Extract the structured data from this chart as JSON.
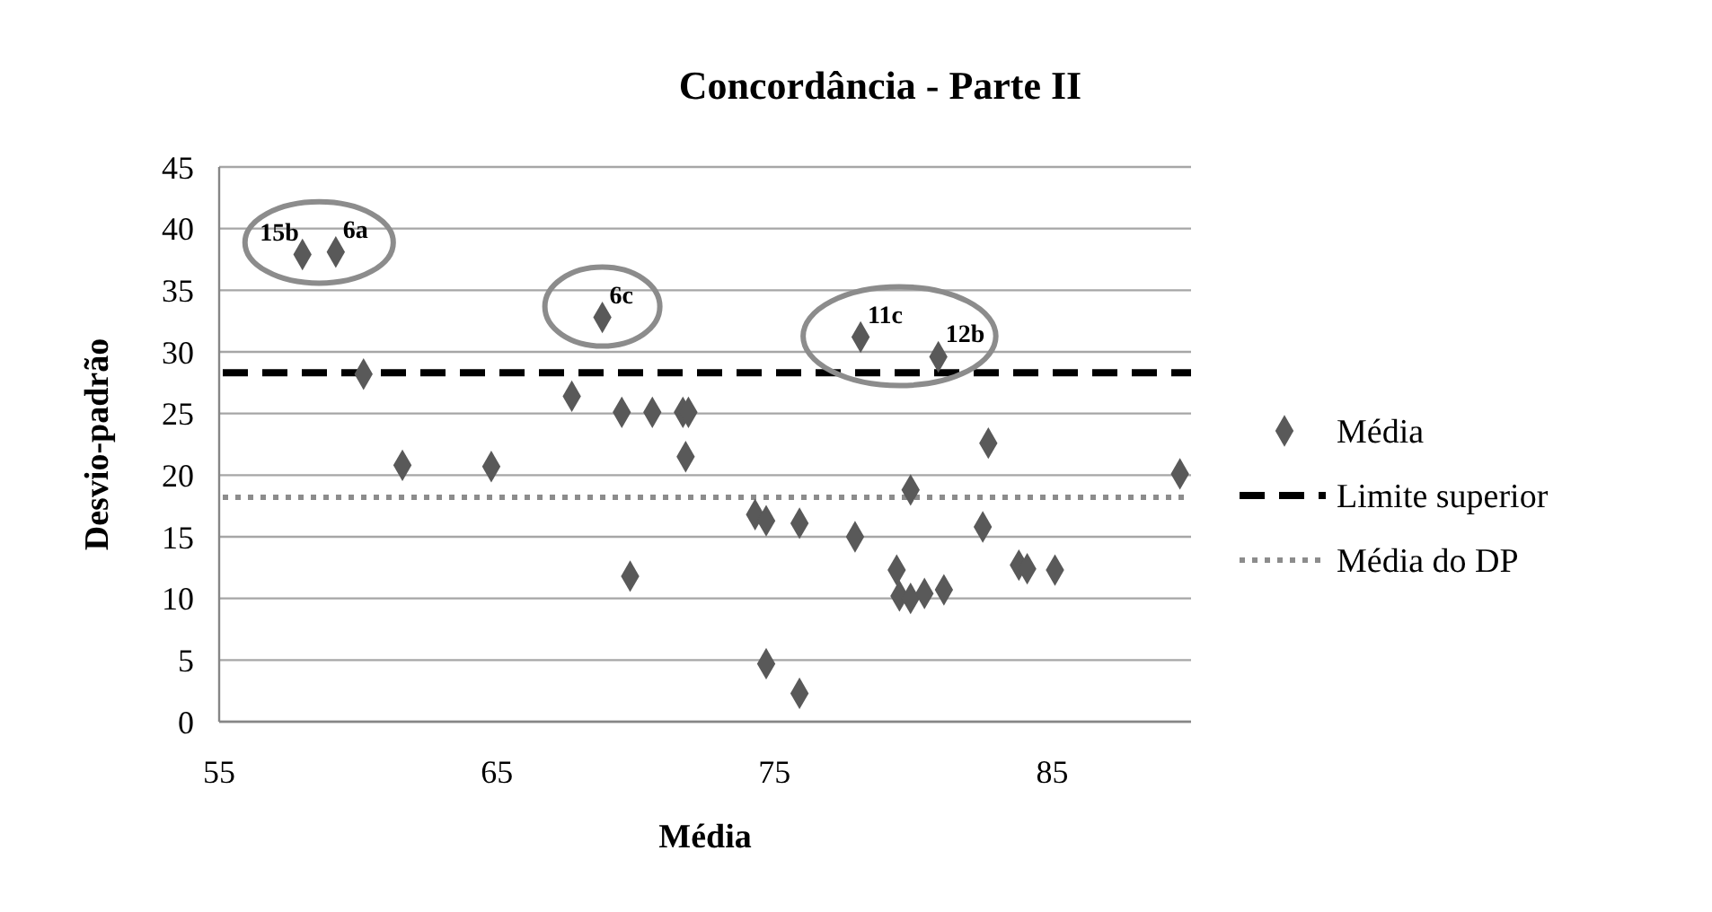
{
  "chart_data": {
    "type": "scatter",
    "title": "Concordância - Parte II",
    "xlabel": "Média",
    "ylabel": "Desvio-padrão",
    "xlim": [
      55,
      90
    ],
    "xticks": [
      55,
      65,
      75,
      85
    ],
    "ylim": [
      0,
      45
    ],
    "yticks": [
      0,
      5,
      10,
      15,
      20,
      25,
      30,
      35,
      40,
      45
    ],
    "grid": "y",
    "legend": "right",
    "marker": "diamond",
    "series": [
      {
        "name": "Média",
        "color": "#595959",
        "x": [
          58.0,
          59.2,
          68.8,
          60.2,
          67.7,
          69.5,
          70.6,
          71.7,
          71.9,
          71.8,
          61.6,
          64.8,
          78.1,
          80.9,
          82.7,
          89.6,
          79.9,
          74.3,
          74.7,
          75.9,
          77.9,
          82.5,
          79.4,
          79.5,
          79.9,
          80.4,
          81.1,
          83.8,
          84.1,
          85.1,
          74.7,
          75.9,
          69.8
        ],
        "values": [
          37.9,
          38.1,
          32.8,
          28.2,
          26.4,
          25.1,
          25.1,
          25.1,
          25.1,
          21.5,
          20.8,
          20.7,
          31.2,
          29.6,
          22.6,
          20.1,
          18.8,
          16.8,
          16.3,
          16.1,
          15.0,
          15.8,
          12.3,
          10.2,
          10.0,
          10.4,
          10.7,
          12.7,
          12.4,
          12.3,
          4.7,
          2.3,
          11.8
        ]
      }
    ],
    "ref_lines": [
      {
        "axis": "y",
        "value": 28.3,
        "label": "Limite superior",
        "color": "#000000",
        "line_style": "dashed"
      },
      {
        "axis": "y",
        "value": 18.2,
        "label": "Média do DP",
        "color": "#8c8c8c",
        "line_style": "dotted"
      }
    ],
    "annotations": [
      {
        "text": "15b",
        "x": 58.0,
        "y": 37.9
      },
      {
        "text": "6a",
        "x": 59.2,
        "y": 38.1
      },
      {
        "text": "6c",
        "x": 68.8,
        "y": 32.8
      },
      {
        "text": "11c",
        "x": 78.1,
        "y": 31.2
      },
      {
        "text": "12b",
        "x": 80.9,
        "y": 29.6
      }
    ]
  }
}
